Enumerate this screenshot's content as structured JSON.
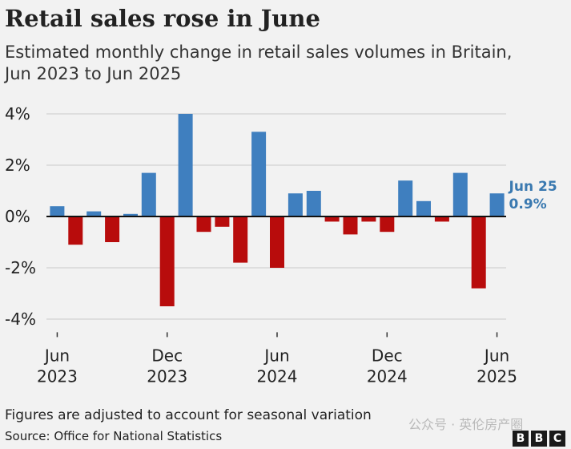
{
  "header": {
    "title": "Retail sales rose in June",
    "subtitle_lines": [
      "Estimated monthly change in retail sales volumes in Britain,",
      "Jun 2023 to Jun 2025"
    ]
  },
  "footer": {
    "footnote": "Figures are adjusted to account for seasonal variation",
    "source": "Source: Office for National Statistics",
    "watermark": "公众号 · 英伦房产圈",
    "logo_letters": [
      "B",
      "B",
      "C"
    ]
  },
  "colors": {
    "positive": "#3f7fbf",
    "negative": "#b80c0c",
    "annotation": "#3a79b0",
    "grid": "#c9c9c9",
    "zero_line": "#111111"
  },
  "chart_data": {
    "type": "bar",
    "title": "Retail sales rose in June",
    "subtitle": "Estimated monthly change in retail sales volumes in Britain, Jun 2023 to Jun 2025",
    "categories": [
      "Jun 2023",
      "Jul 2023",
      "Aug 2023",
      "Sep 2023",
      "Oct 2023",
      "Nov 2023",
      "Dec 2023",
      "Jan 2024",
      "Feb 2024",
      "Mar 2024",
      "Apr 2024",
      "May 2024",
      "Jun 2024",
      "Jul 2024",
      "Aug 2024",
      "Sep 2024",
      "Oct 2024",
      "Nov 2024",
      "Dec 2024",
      "Jan 2025",
      "Feb 2025",
      "Mar 2025",
      "Apr 2025",
      "May 2025",
      "Jun 2025"
    ],
    "values": [
      0.4,
      -1.1,
      0.2,
      -1.0,
      0.1,
      1.7,
      -3.5,
      4.0,
      -0.6,
      -0.4,
      -1.8,
      3.3,
      -2.0,
      0.9,
      1.0,
      -0.2,
      -0.7,
      -0.2,
      -0.6,
      1.4,
      0.6,
      -0.2,
      1.7,
      -2.8,
      0.9
    ],
    "ylim": [
      -4.7,
      4.3
    ],
    "yticks": [
      4,
      2,
      0,
      -2,
      -4
    ],
    "ytick_labels": [
      "4%",
      "2%",
      "0%",
      "-2%",
      "-4%"
    ],
    "xtick_labels": [
      {
        "index": 0,
        "line1": "Jun",
        "line2": "2023"
      },
      {
        "index": 6,
        "line1": "Dec",
        "line2": "2023"
      },
      {
        "index": 12,
        "line1": "Jun",
        "line2": "2024"
      },
      {
        "index": 18,
        "line1": "Dec",
        "line2": "2024"
      },
      {
        "index": 24,
        "line1": "Jun",
        "line2": "2025"
      }
    ],
    "grid": true,
    "annotation": {
      "index": 24,
      "label": "Jun 25",
      "value_label": "0.9%"
    }
  }
}
